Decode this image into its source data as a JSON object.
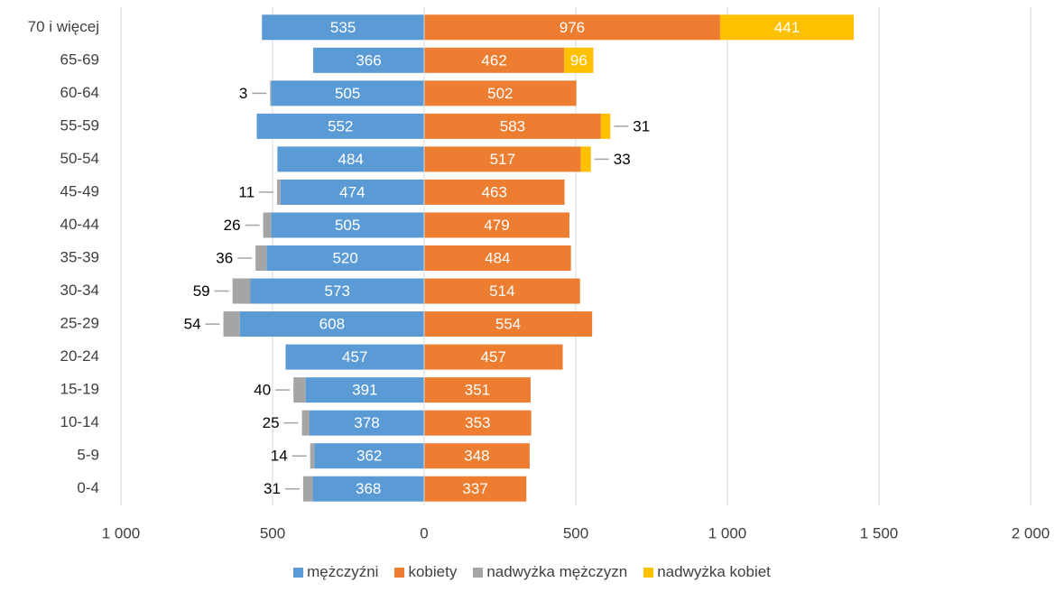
{
  "chart_data": {
    "type": "pyramid",
    "categories": [
      "70 i więcej",
      "65-69",
      "60-64",
      "55-59",
      "50-54",
      "45-49",
      "40-44",
      "35-39",
      "30-34",
      "25-29",
      "20-24",
      "15-19",
      "10-14",
      "5-9",
      "0-4"
    ],
    "series": [
      {
        "name": "mężczyźni",
        "color": "#5b9bd5",
        "values": [
          -535,
          -366,
          -505,
          -552,
          -484,
          -474,
          -505,
          -520,
          -573,
          -608,
          -457,
          -391,
          -378,
          -362,
          -368
        ],
        "value_labels": [
          "535",
          "366",
          "505",
          "552",
          "484",
          "474",
          "505",
          "520",
          "573",
          "608",
          "457",
          "391",
          "378",
          "362",
          "368"
        ]
      },
      {
        "name": "kobiety",
        "color": "#ed7d31",
        "values": [
          976,
          462,
          502,
          583,
          517,
          463,
          479,
          484,
          514,
          554,
          457,
          351,
          353,
          348,
          337
        ]
      },
      {
        "name": "nadwyżka mężczyzn",
        "color": "#a5a5a5",
        "values": [
          null,
          null,
          -3,
          null,
          null,
          -11,
          -26,
          -36,
          -59,
          -54,
          null,
          -40,
          -25,
          -14,
          -31
        ],
        "value_labels": [
          null,
          null,
          "3",
          null,
          null,
          "11",
          "26",
          "36",
          "59",
          "54",
          null,
          "40",
          "25",
          "14",
          "31"
        ]
      },
      {
        "name": "nadwyżka kobiet",
        "color": "#ffc000",
        "values": [
          441,
          96,
          null,
          31,
          33,
          null,
          null,
          null,
          null,
          null,
          null,
          null,
          null,
          null,
          null
        ]
      }
    ],
    "xlim": [
      -1000,
      2000
    ],
    "xticks": [
      {
        "value": -1000,
        "label": "1 000"
      },
      {
        "value": -500,
        "label": "500"
      },
      0,
      500,
      {
        "value": 1000,
        "label": "1 000"
      },
      {
        "value": 1500,
        "label": "1 500"
      },
      {
        "value": 2000,
        "label": "2 000"
      }
    ],
    "grid": true,
    "legend": "bottom"
  }
}
